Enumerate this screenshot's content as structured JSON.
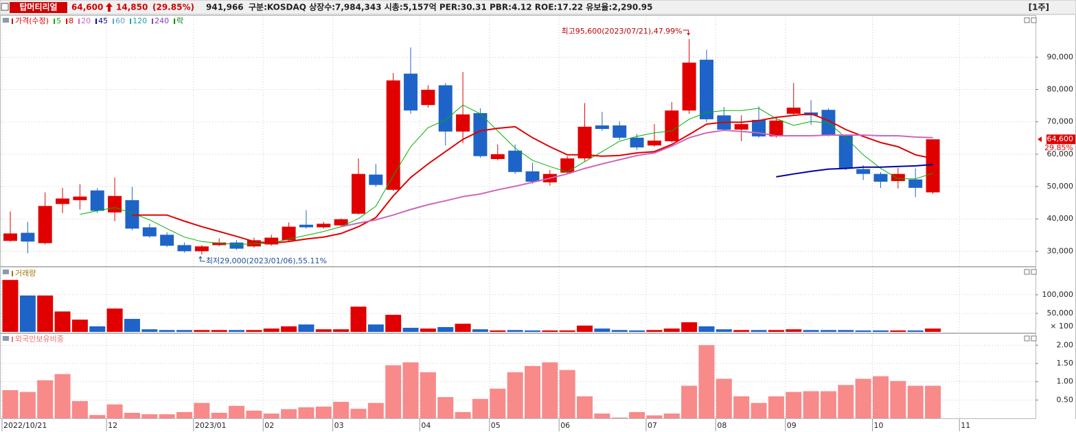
{
  "header": {
    "name": "탑머티리얼",
    "price": "64,600",
    "change": "14,850",
    "change_pct": "(29.85%)",
    "volume": "941,966",
    "info": "구분:KOSDAQ 상장수:7,984,343 시총:5,157억 PER:30.31 PBR:4.12 ROE:17.22 유보율:2,290.95",
    "period": "[1주]"
  },
  "chart_data": [
    {
      "type": "candlestick",
      "title": "가격(수정)",
      "legend": [
        {
          "name": "5",
          "color": "#00b000"
        },
        {
          "name": "8",
          "color": "#e00000"
        },
        {
          "name": "20",
          "color": "#cc66bb"
        },
        {
          "name": "45",
          "color": "#0000a0"
        },
        {
          "name": "60",
          "color": "#5aa0d8"
        },
        {
          "name": "120",
          "color": "#20a0a0"
        },
        {
          "name": "240",
          "color": "#8040c0"
        },
        {
          "name": "락",
          "color": "#008800"
        }
      ],
      "up_color": "#e00000",
      "down_color": "#1e64c8",
      "open": [
        33200,
        35700,
        32500,
        44600,
        45800,
        48800,
        42000,
        45800,
        37400,
        35100,
        31900,
        30000,
        31900,
        32700,
        31500,
        32100,
        33400,
        38200,
        37400,
        38000,
        41600,
        53700,
        49000,
        84900,
        75200,
        81300,
        67000,
        72700,
        58500,
        61100,
        54700,
        51300,
        54300,
        58700,
        68900,
        68900,
        65100,
        62700,
        64000,
        73500,
        89200,
        72000,
        67600,
        70600,
        65500,
        72500,
        72900,
        73700,
        65700,
        55400,
        53900,
        51700,
        52200,
        48200
      ],
      "high": [
        42300,
        39100,
        48200,
        49600,
        50700,
        49500,
        52800,
        49900,
        38500,
        35900,
        32700,
        31900,
        34000,
        33400,
        34200,
        35100,
        38900,
        42700,
        39100,
        40100,
        58700,
        57000,
        85100,
        93000,
        81300,
        82000,
        85400,
        74200,
        63000,
        63000,
        57300,
        55100,
        59400,
        75800,
        73100,
        70100,
        66300,
        69300,
        76100,
        95600,
        92300,
        74600,
        72000,
        74800,
        71400,
        82000,
        76700,
        74200,
        66100,
        56600,
        54500,
        55800,
        55600,
        64600
      ],
      "low": [
        33000,
        29400,
        32100,
        41800,
        42900,
        41800,
        39300,
        36500,
        34200,
        31300,
        29600,
        29000,
        31600,
        30400,
        31100,
        31700,
        32900,
        37000,
        37000,
        37600,
        41400,
        49900,
        48600,
        72500,
        74400,
        62700,
        63400,
        58900,
        58100,
        53900,
        50900,
        50300,
        53900,
        57900,
        67200,
        64400,
        61300,
        62300,
        63600,
        72500,
        69900,
        67200,
        64000,
        65100,
        65100,
        72000,
        69100,
        65500,
        55100,
        52000,
        49600,
        49400,
        46700,
        47700
      ],
      "close": [
        35500,
        33000,
        44000,
        46300,
        46900,
        42500,
        47100,
        37000,
        34600,
        31700,
        30000,
        31500,
        32700,
        30800,
        33400,
        34200,
        37600,
        37400,
        38500,
        39900,
        53900,
        50500,
        82800,
        73500,
        79900,
        67000,
        72300,
        59400,
        60000,
        54500,
        51500,
        53900,
        58700,
        68500,
        67800,
        65100,
        62100,
        64200,
        73500,
        88300,
        70800,
        67600,
        69300,
        65500,
        70400,
        74400,
        72000,
        65900,
        55600,
        53900,
        51500,
        53900,
        49600,
        64600
      ],
      "series": [
        {
          "color": "#00b000",
          "values": [
            null,
            null,
            null,
            null,
            41400,
            42500,
            43500,
            41800,
            39700,
            37000,
            34400,
            33000,
            32500,
            32100,
            32300,
            32500,
            33800,
            34900,
            36100,
            37600,
            40100,
            43900,
            53400,
            62300,
            68200,
            70600,
            75200,
            72500,
            67200,
            61900,
            58100,
            56200,
            54500,
            57700,
            60800,
            64000,
            65500,
            66600,
            67200,
            70800,
            72900,
            73500,
            73500,
            74200,
            71000,
            68900,
            70100,
            69700,
            65100,
            59800,
            55600,
            52400,
            52400,
            54100
          ]
        },
        {
          "color": "#e00000",
          "values": [
            null,
            null,
            null,
            null,
            null,
            null,
            null,
            41200,
            41200,
            41200,
            39300,
            37600,
            36100,
            34600,
            33000,
            32500,
            33000,
            33800,
            34400,
            35500,
            37600,
            40400,
            47100,
            52800,
            57000,
            60800,
            64600,
            67200,
            68000,
            68500,
            65100,
            62300,
            59800,
            59800,
            59400,
            59600,
            60400,
            60800,
            63000,
            66100,
            69300,
            69900,
            69900,
            70400,
            71400,
            72000,
            72500,
            70400,
            67600,
            65500,
            63600,
            62300,
            59800,
            58700
          ]
        },
        {
          "color": "#cc66bb",
          "values": [
            null,
            null,
            null,
            null,
            null,
            null,
            null,
            null,
            null,
            null,
            null,
            null,
            null,
            null,
            null,
            null,
            null,
            null,
            null,
            37600,
            38700,
            39700,
            41200,
            42900,
            44400,
            45600,
            46900,
            47700,
            49000,
            50100,
            51300,
            52600,
            53900,
            55600,
            57000,
            58300,
            59600,
            60400,
            62500,
            65100,
            66600,
            67400,
            67000,
            66600,
            65700,
            65700,
            65700,
            65900,
            65900,
            65900,
            65700,
            65700,
            65300,
            65100
          ]
        },
        {
          "color": "#0000a0",
          "values": [
            null,
            null,
            null,
            null,
            null,
            null,
            null,
            null,
            null,
            null,
            null,
            null,
            null,
            null,
            null,
            null,
            null,
            null,
            null,
            null,
            null,
            null,
            null,
            null,
            null,
            null,
            null,
            null,
            null,
            null,
            null,
            null,
            null,
            null,
            null,
            null,
            null,
            null,
            null,
            null,
            null,
            null,
            null,
            null,
            53000,
            53900,
            54700,
            55400,
            55600,
            56000,
            56000,
            56200,
            56400,
            56800
          ]
        }
      ],
      "annotations": [
        {
          "text": "최고95,600(2023/07/21),47.99%",
          "color": "#c00000"
        },
        {
          "text": "최저29,000(2023/01/06),55.11%",
          "color": "#1e50a0"
        }
      ],
      "last_label": "64,600",
      "last_pct": "29.85%",
      "ylim": [
        25000,
        103000
      ],
      "yticks": [
        {
          "value": 30000,
          "label": "30,000"
        },
        {
          "value": 40000,
          "label": "40,000"
        },
        {
          "value": 50000,
          "label": "50,000"
        },
        {
          "value": 60000,
          "label": "60,000"
        },
        {
          "value": 70000,
          "label": "70,000"
        },
        {
          "value": 80000,
          "label": "80,000"
        },
        {
          "value": 90000,
          "label": "90,000"
        }
      ],
      "grid": true
    },
    {
      "type": "bar",
      "title": "거래량",
      "unit_note": "× 100",
      "values": [
        140000,
        98000,
        98000,
        55000,
        33000,
        15000,
        63000,
        35000,
        7000,
        5000,
        5000,
        5000,
        5000,
        5000,
        5000,
        9000,
        15000,
        20000,
        7000,
        7000,
        68000,
        20000,
        46000,
        11000,
        9000,
        13000,
        22000,
        7000,
        4000,
        5000,
        4000,
        4000,
        4000,
        17000,
        9000,
        5000,
        4000,
        5000,
        9000,
        26000,
        15000,
        7000,
        5000,
        5000,
        5000,
        7000,
        5000,
        5000,
        5000,
        4000,
        4000,
        4000,
        4000,
        9000
      ],
      "ylim": [
        0,
        170000
      ],
      "yticks": [
        {
          "value": 50000,
          "label": "50,000"
        },
        {
          "value": 100000,
          "label": "100,000"
        }
      ],
      "grid": true
    },
    {
      "type": "bar",
      "title": "외국인보유비중",
      "color": "#f88a8a",
      "values": [
        0.77,
        0.72,
        1.04,
        1.21,
        0.47,
        0.09,
        0.38,
        0.15,
        0.11,
        0.11,
        0.17,
        0.42,
        0.15,
        0.34,
        0.21,
        0.13,
        0.25,
        0.3,
        0.32,
        0.45,
        0.26,
        0.42,
        1.45,
        1.53,
        1.26,
        0.58,
        0.17,
        0.53,
        0.81,
        1.26,
        1.43,
        1.53,
        1.32,
        0.6,
        0.13,
        0.02,
        0.17,
        0.08,
        0.13,
        0.89,
        2.0,
        1.08,
        0.6,
        0.42,
        0.6,
        0.72,
        0.74,
        0.74,
        0.91,
        1.08,
        1.15,
        1.02,
        0.89,
        0.89
      ],
      "ylim": [
        0,
        2.25
      ],
      "yticks": [
        {
          "value": 0.5,
          "label": "0.50"
        },
        {
          "value": 1,
          "label": "1.00"
        },
        {
          "value": 1.5,
          "label": "1.50"
        },
        {
          "value": 2,
          "label": "2.00"
        }
      ],
      "xticks": [
        {
          "value": 0,
          "label": "2022/10/21"
        },
        {
          "value": 6,
          "label": "12"
        },
        {
          "value": 11,
          "label": "2023/01"
        },
        {
          "value": 15,
          "label": "02"
        },
        {
          "value": 19,
          "label": "03"
        },
        {
          "value": 24,
          "label": "04"
        },
        {
          "value": 28,
          "label": "05"
        },
        {
          "value": 32,
          "label": "06"
        },
        {
          "value": 37,
          "label": "07"
        },
        {
          "value": 41,
          "label": "08"
        },
        {
          "value": 45,
          "label": "09"
        },
        {
          "value": 50,
          "label": "10"
        },
        {
          "value": 55,
          "label": "11"
        }
      ],
      "grid": true
    }
  ]
}
